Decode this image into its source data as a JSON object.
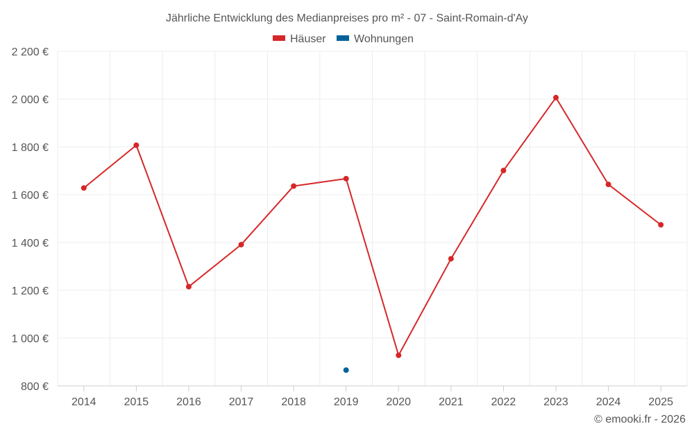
{
  "chart_data": {
    "type": "line",
    "title": "Jährliche Entwicklung des Medianpreises pro m² - 07 - Saint-Romain-d'Ay",
    "categories": [
      "2014",
      "2015",
      "2016",
      "2017",
      "2018",
      "2019",
      "2020",
      "2021",
      "2022",
      "2023",
      "2024",
      "2025"
    ],
    "ylim": [
      800,
      2200
    ],
    "yticks": [
      800,
      1000,
      1200,
      1400,
      1600,
      1800,
      2000,
      2200
    ],
    "ytick_labels": [
      "800 €",
      "1 000 €",
      "1 200 €",
      "1 400 €",
      "1 600 €",
      "1 800 €",
      "2 000 €",
      "2 200 €"
    ],
    "grid": true,
    "legend_position": "top-center",
    "series": [
      {
        "name": "Häuser",
        "color": "#d62728",
        "values": [
          1628,
          1807,
          1215,
          1391,
          1636,
          1667,
          928,
          1332,
          1701,
          2006,
          1643,
          1474
        ]
      },
      {
        "name": "Wohnungen",
        "color": "#00629b",
        "values": [
          null,
          null,
          null,
          null,
          null,
          866,
          null,
          null,
          null,
          null,
          null,
          null
        ]
      }
    ],
    "credit": "© emooki.fr - 2026"
  }
}
